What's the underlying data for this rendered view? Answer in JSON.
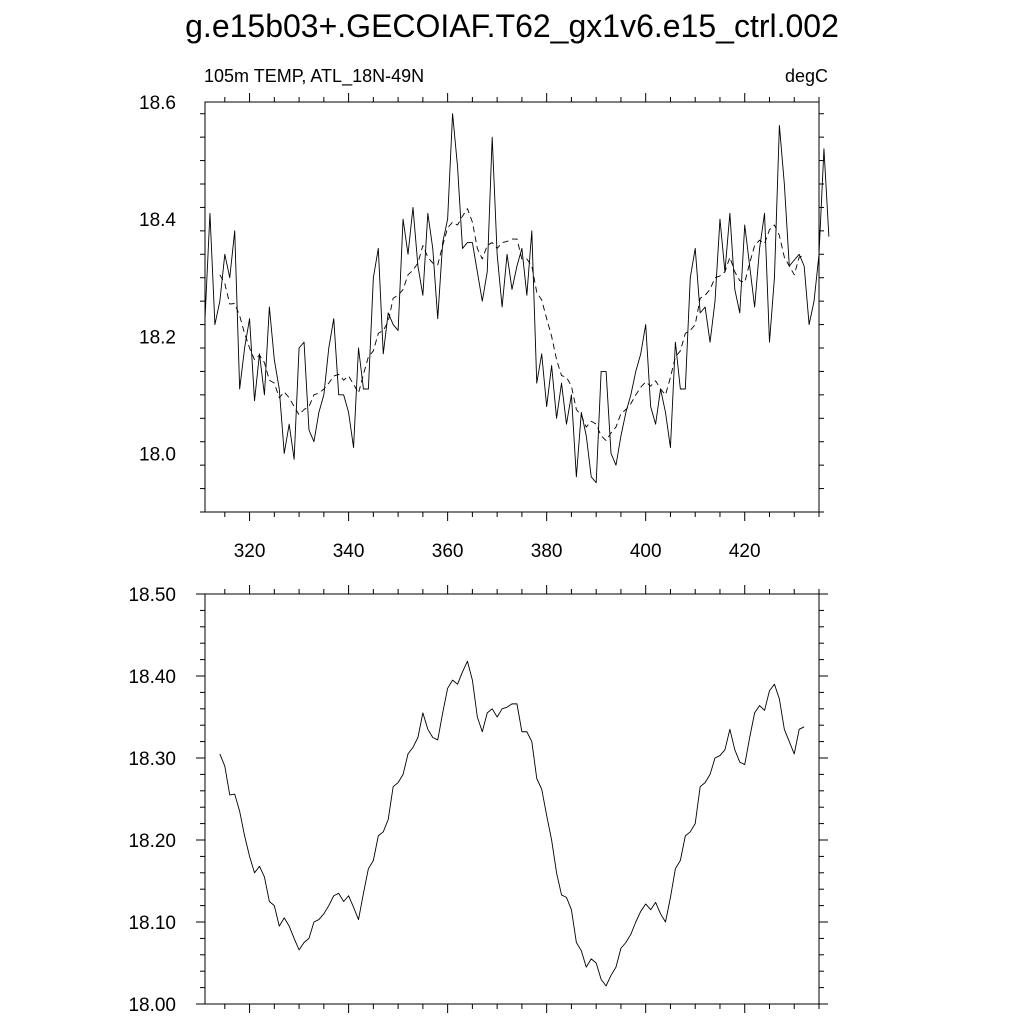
{
  "page": {
    "title": "g.e15b03+.GECOIAF.T62_gx1v6.e15_ctrl.002",
    "left_label": "105m TEMP, ATL_18N-49N",
    "right_label": "degC"
  },
  "chart_data": [
    {
      "type": "line",
      "xlim": [
        311,
        435
      ],
      "ylim": [
        17.9,
        18.6
      ],
      "x_ticks": [
        320,
        340,
        360,
        380,
        400,
        420
      ],
      "x_tick_labels": [
        "320",
        "340",
        "360",
        "380",
        "400",
        "420"
      ],
      "y_ticks": [
        18.0,
        18.2,
        18.4,
        18.6
      ],
      "y_tick_labels": [
        "18.0",
        "18.2",
        "18.4",
        "18.6"
      ],
      "grid": false,
      "series": [
        {
          "style": "solid",
          "x_start": 311,
          "x_step": 1,
          "values": [
            18.23,
            18.41,
            18.22,
            18.26,
            18.34,
            18.3,
            18.38,
            18.11,
            18.18,
            18.23,
            18.09,
            18.17,
            18.1,
            18.25,
            18.16,
            18.11,
            18.0,
            18.05,
            17.99,
            18.18,
            18.19,
            18.04,
            18.02,
            18.07,
            18.1,
            18.18,
            18.23,
            18.1,
            18.1,
            18.07,
            18.01,
            18.18,
            18.11,
            18.11,
            18.3,
            18.35,
            18.17,
            18.24,
            18.22,
            18.21,
            18.4,
            18.34,
            18.42,
            18.32,
            18.27,
            18.41,
            18.35,
            18.23,
            18.36,
            18.4,
            18.58,
            18.49,
            18.35,
            18.36,
            18.36,
            18.31,
            18.26,
            18.31,
            18.54,
            18.34,
            18.25,
            18.34,
            18.28,
            18.32,
            18.35,
            18.27,
            18.38,
            18.12,
            18.17,
            18.08,
            18.15,
            18.06,
            18.12,
            18.05,
            18.1,
            17.96,
            18.07,
            18.03,
            17.96,
            17.95,
            18.14,
            18.14,
            18.0,
            17.98,
            18.03,
            18.07,
            18.1,
            18.14,
            18.17,
            18.22,
            18.08,
            18.05,
            18.11,
            18.07,
            18.01,
            18.19,
            18.11,
            18.11,
            18.3,
            18.35,
            18.24,
            18.25,
            18.19,
            18.26,
            18.4,
            18.31,
            18.41,
            18.28,
            18.24,
            18.39,
            18.32,
            18.25,
            18.35,
            18.41,
            18.19,
            18.3,
            18.56,
            18.46,
            18.32,
            18.33,
            18.34,
            18.32,
            18.22,
            18.26,
            18.34,
            18.52,
            18.37
          ]
        },
        {
          "style": "dashed",
          "x_start": 314,
          "x_step": 1,
          "values": [
            18.305,
            18.29,
            18.255,
            18.256,
            18.235,
            18.205,
            18.18,
            18.16,
            18.168,
            18.155,
            18.125,
            18.12,
            18.095,
            18.105,
            18.095,
            18.08,
            18.066,
            18.075,
            18.08,
            18.1,
            18.103,
            18.11,
            18.12,
            18.132,
            18.135,
            18.125,
            18.132,
            18.118,
            18.103,
            18.135,
            18.165,
            18.175,
            18.205,
            18.21,
            18.225,
            18.265,
            18.27,
            18.28,
            18.305,
            18.313,
            18.325,
            18.355,
            18.335,
            18.325,
            18.322,
            18.355,
            18.385,
            18.395,
            18.39,
            18.405,
            18.418,
            18.395,
            18.35,
            18.332,
            18.355,
            18.36,
            18.35,
            18.36,
            18.362,
            18.366,
            18.366,
            18.332,
            18.332,
            18.32,
            18.275,
            18.262,
            18.23,
            18.2,
            18.16,
            18.133,
            18.13,
            18.115,
            18.075,
            18.065,
            18.045,
            18.055,
            18.05,
            18.03,
            18.022,
            18.035,
            18.045,
            18.068,
            18.075,
            18.085,
            18.1,
            18.113,
            18.122,
            18.115,
            18.124,
            18.11,
            18.1,
            18.13,
            18.165,
            18.175,
            18.205,
            18.21,
            18.22,
            18.265,
            18.27,
            18.28,
            18.3,
            18.303,
            18.31,
            18.335,
            18.31,
            18.295,
            18.292,
            18.325,
            18.355,
            18.364,
            18.358,
            18.382,
            18.39,
            18.372,
            18.335,
            18.32,
            18.305,
            18.335,
            18.338
          ]
        }
      ]
    },
    {
      "type": "line",
      "xlim": [
        311,
        435
      ],
      "ylim": [
        18.0,
        18.5
      ],
      "x_ticks": [
        320,
        340,
        360,
        380,
        400,
        420
      ],
      "y_ticks": [
        18.0,
        18.1,
        18.2,
        18.3,
        18.4,
        18.5
      ],
      "y_tick_labels": [
        "18.00",
        "18.10",
        "18.20",
        "18.30",
        "18.40",
        "18.50"
      ],
      "grid": false,
      "series": [
        {
          "style": "solid",
          "x_start": 314,
          "x_step": 1,
          "values": [
            18.305,
            18.29,
            18.255,
            18.256,
            18.235,
            18.205,
            18.18,
            18.16,
            18.168,
            18.155,
            18.125,
            18.12,
            18.095,
            18.105,
            18.095,
            18.08,
            18.066,
            18.075,
            18.08,
            18.1,
            18.103,
            18.11,
            18.12,
            18.132,
            18.135,
            18.125,
            18.132,
            18.118,
            18.103,
            18.135,
            18.165,
            18.175,
            18.205,
            18.21,
            18.225,
            18.265,
            18.27,
            18.28,
            18.305,
            18.313,
            18.325,
            18.355,
            18.335,
            18.325,
            18.322,
            18.355,
            18.385,
            18.395,
            18.39,
            18.405,
            18.418,
            18.395,
            18.35,
            18.332,
            18.355,
            18.36,
            18.35,
            18.36,
            18.362,
            18.366,
            18.366,
            18.332,
            18.332,
            18.32,
            18.275,
            18.262,
            18.23,
            18.2,
            18.16,
            18.133,
            18.13,
            18.115,
            18.075,
            18.065,
            18.045,
            18.055,
            18.05,
            18.03,
            18.022,
            18.035,
            18.045,
            18.068,
            18.075,
            18.085,
            18.1,
            18.113,
            18.122,
            18.115,
            18.124,
            18.11,
            18.1,
            18.13,
            18.165,
            18.175,
            18.205,
            18.21,
            18.22,
            18.265,
            18.27,
            18.28,
            18.3,
            18.303,
            18.31,
            18.335,
            18.31,
            18.295,
            18.292,
            18.325,
            18.355,
            18.364,
            18.358,
            18.382,
            18.39,
            18.372,
            18.335,
            18.32,
            18.305,
            18.335,
            18.338
          ]
        }
      ]
    }
  ]
}
